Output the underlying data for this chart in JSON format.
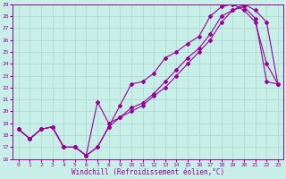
{
  "xlabel": "Windchill (Refroidissement éolien,°C)",
  "bg_color": "#c8eee8",
  "grid_color": "#a8d8cc",
  "line_color": "#990099",
  "xlim": [
    -0.5,
    23.5
  ],
  "ylim": [
    16,
    29
  ],
  "xticks": [
    0,
    1,
    2,
    3,
    4,
    5,
    6,
    7,
    8,
    9,
    10,
    11,
    12,
    13,
    14,
    15,
    16,
    17,
    18,
    19,
    20,
    21,
    22,
    23
  ],
  "yticks": [
    16,
    17,
    18,
    19,
    20,
    21,
    22,
    23,
    24,
    25,
    26,
    27,
    28,
    29
  ],
  "series1_x": [
    0,
    1,
    2,
    3,
    4,
    5,
    6,
    7,
    8,
    9,
    10,
    11,
    12,
    13,
    14,
    15,
    16,
    17,
    18,
    19,
    20,
    21,
    22,
    23
  ],
  "series1_y": [
    18.5,
    17.7,
    18.5,
    18.7,
    17.0,
    17.0,
    16.3,
    17.0,
    18.7,
    20.5,
    22.3,
    22.5,
    23.2,
    24.5,
    25.0,
    25.7,
    26.3,
    28.0,
    28.8,
    29.0,
    28.5,
    27.5,
    24.0,
    22.3
  ],
  "series2_x": [
    0,
    1,
    2,
    3,
    4,
    5,
    6,
    7,
    8,
    9,
    10,
    11,
    12,
    13,
    14,
    15,
    16,
    17,
    18,
    19,
    20,
    21,
    22,
    23
  ],
  "series2_y": [
    18.5,
    17.7,
    18.5,
    18.7,
    17.0,
    17.0,
    16.3,
    20.8,
    19.0,
    19.5,
    20.3,
    20.7,
    21.5,
    22.5,
    23.5,
    24.5,
    25.3,
    26.5,
    28.0,
    28.5,
    29.0,
    28.5,
    27.5,
    22.3
  ],
  "series3_x": [
    0,
    1,
    2,
    3,
    4,
    5,
    6,
    7,
    8,
    9,
    10,
    11,
    12,
    13,
    14,
    15,
    16,
    17,
    18,
    19,
    20,
    21,
    22,
    23
  ],
  "series3_y": [
    18.5,
    17.7,
    18.5,
    18.7,
    17.0,
    17.0,
    16.3,
    17.0,
    18.7,
    19.5,
    20.0,
    20.5,
    21.3,
    22.0,
    23.0,
    24.0,
    25.0,
    26.0,
    27.5,
    28.5,
    28.8,
    27.8,
    22.5,
    22.3
  ],
  "marker_size": 2.0,
  "line_width": 0.8,
  "tick_fontsize": 4.5,
  "xlabel_fontsize": 5.5
}
